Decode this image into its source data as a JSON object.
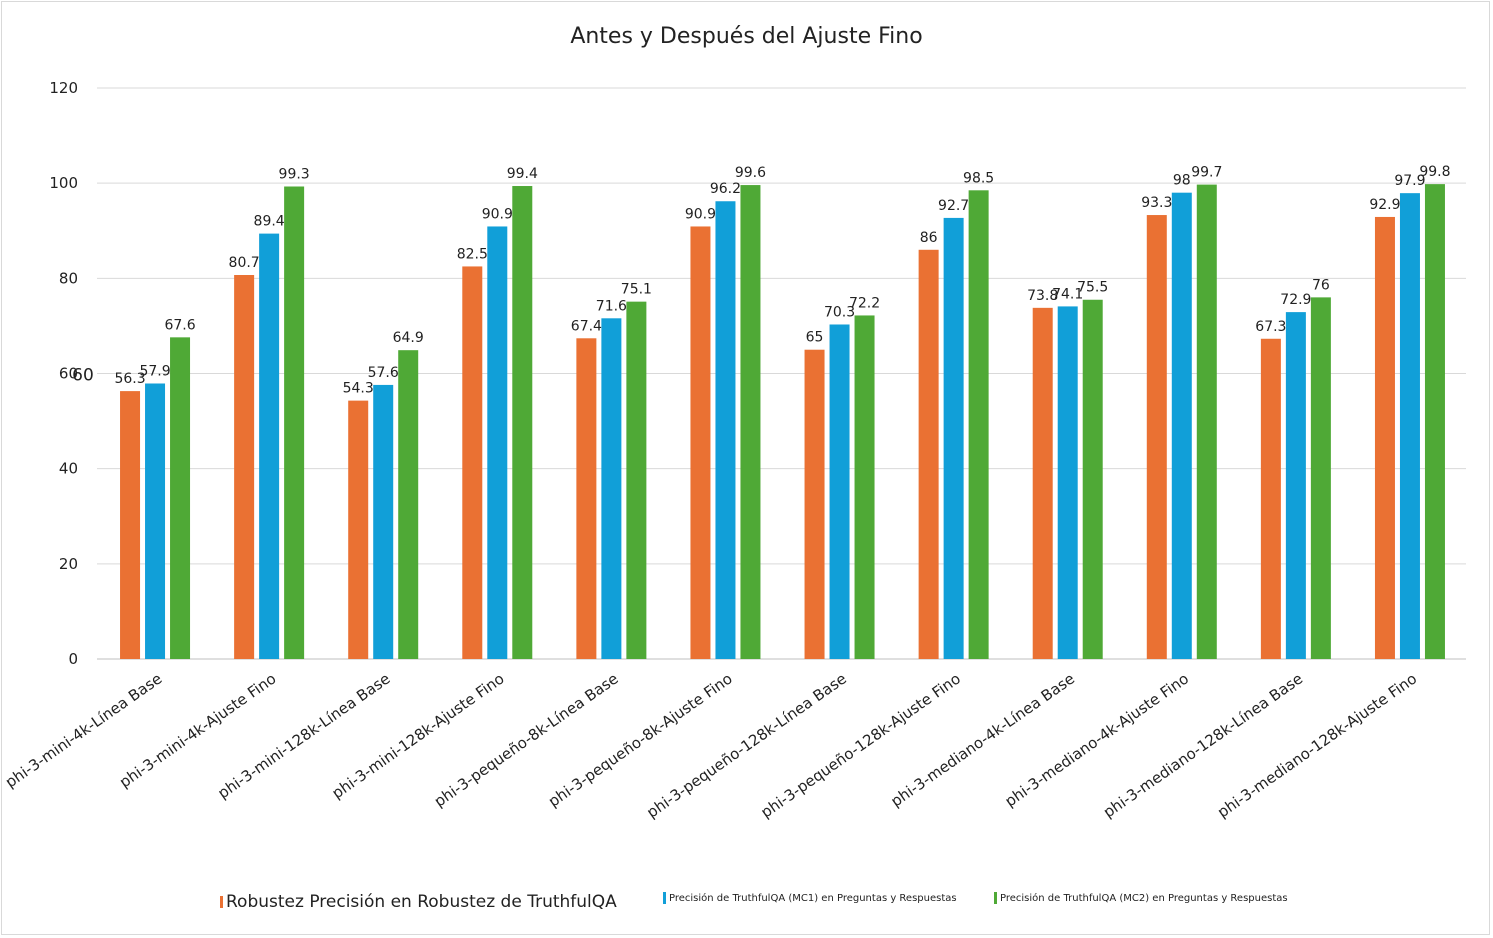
{
  "chart_data": {
    "type": "bar",
    "title": "Antes y Después del Ajuste Fino",
    "xlabel": "",
    "ylabel": "",
    "ylim": [
      0,
      120
    ],
    "yticks": [
      0,
      20,
      40,
      60,
      80,
      100,
      120
    ],
    "grid": true,
    "legend_position": "bottom",
    "categories": [
      "phi-3-mini-4k-Línea Base",
      "phi-3-mini-4k-Ajuste Fino",
      "phi-3-mini-128k-Línea Base",
      "phi-3-mini-128k-Ajuste Fino",
      "phi-3-pequeño-8k-Línea Base",
      "phi-3-pequeño-8k-Ajuste Fino",
      "phi-3-pequeño-128k-Línea Base",
      "phi-3-pequeño-128k-Ajuste Fino",
      "phi-3-mediano-4k-Línea Base",
      "phi-3-mediano-4k-Ajuste Fino",
      "phi-3-mediano-128k-Línea Base",
      "phi-3-mediano-128k-Ajuste Fino"
    ],
    "series": [
      {
        "name": "Robustez Precisión en Robustez de TruthfulQA",
        "color": "#ea7133",
        "values": [
          56.3,
          80.7,
          54.3,
          82.5,
          67.4,
          90.9,
          65,
          86,
          73.8,
          93.3,
          67.3,
          92.9
        ]
      },
      {
        "name": "Precisión de TruthfulQA (MC1) en Preguntas y Respuestas",
        "color": "#119fd8",
        "values": [
          57.9,
          89.4,
          57.6,
          90.9,
          71.6,
          96.2,
          70.3,
          92.7,
          74.1,
          98,
          72.9,
          97.9
        ]
      },
      {
        "name": "Precisión de TruthfulQA (MC2) en Preguntas y Respuestas",
        "color": "#4fa936",
        "values": [
          67.6,
          99.3,
          64.9,
          99.4,
          75.1,
          99.6,
          72.2,
          98.5,
          75.5,
          99.7,
          76,
          99.8
        ]
      }
    ],
    "extra_label": "60"
  }
}
